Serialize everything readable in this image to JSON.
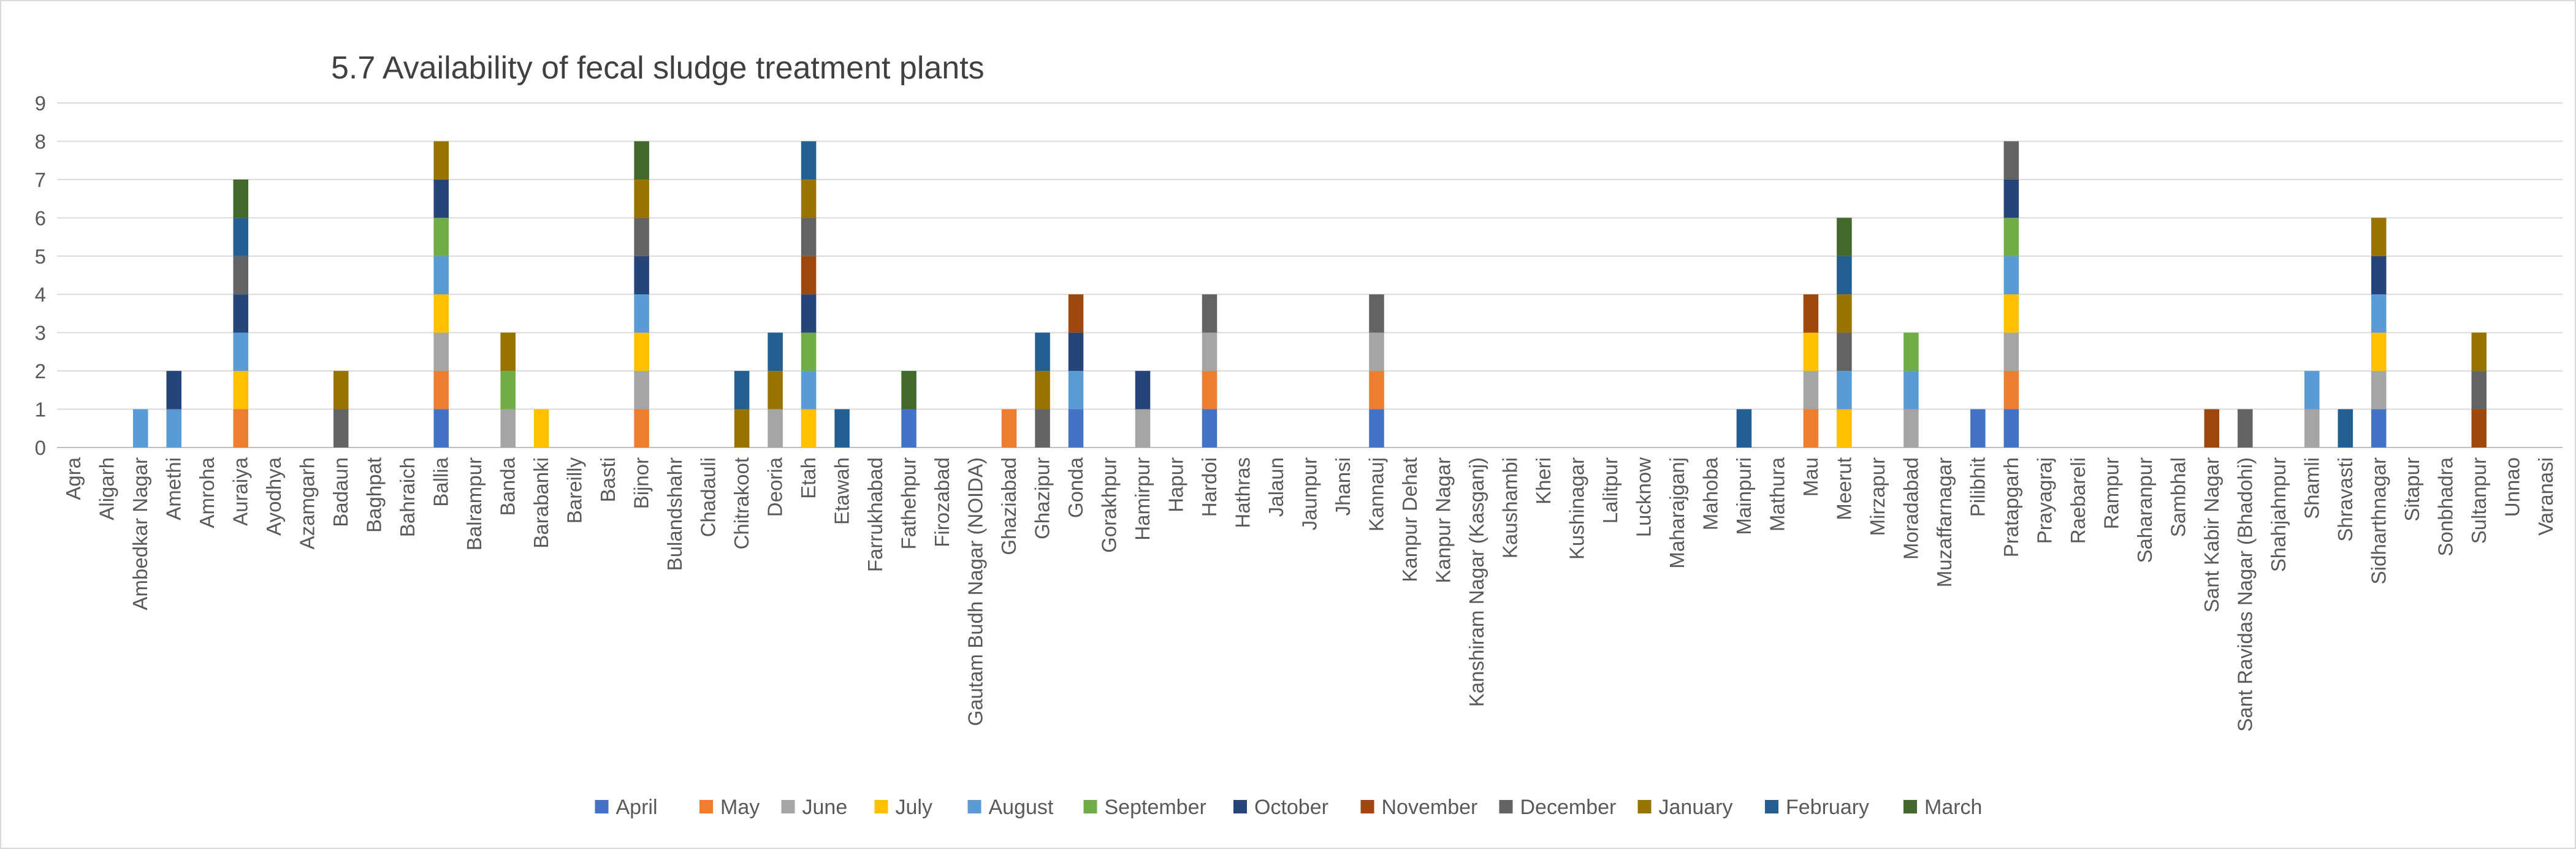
{
  "chart_data": {
    "type": "bar",
    "stacked": true,
    "title": "5.7 Availability of fecal sludge treatment plants",
    "xlabel": "",
    "ylabel": "",
    "ylim": [
      0,
      9
    ],
    "yticks": [
      "0",
      "1",
      "2",
      "3",
      "4",
      "5",
      "6",
      "7",
      "8",
      "9"
    ],
    "grid": true,
    "legend_position": "bottom",
    "categories": [
      "Agra",
      "Aligarh",
      "Ambedkar Nagar",
      "Amethi",
      "Amroha",
      "Auraiya",
      "Ayodhya",
      "Azamgarh",
      "Badaun",
      "Baghpat",
      "Bahraich",
      "Ballia",
      "Balrampur",
      "Banda",
      "Barabanki",
      "Bareilly",
      "Basti",
      "Bijnor",
      "Bulandshahr",
      "Chadauli",
      "Chitrakoot",
      "Deoria",
      "Etah",
      "Etawah",
      "Farrukhabad",
      "Fathehpur",
      "Firozabad",
      "Gautam Budh Nagar (NOIDA)",
      "Ghaziabad",
      "Ghazipur",
      "Gonda",
      "Gorakhpur",
      "Hamirpur",
      "Hapur",
      "Hardoi",
      "Hathras",
      "Jalaun",
      "Jaunpur",
      "Jhansi",
      "Kannauj",
      "Kanpur Dehat",
      "Kanpur Nagar",
      "Kanshiram Nagar (Kasganj)",
      "Kaushambi",
      "Kheri",
      "Kushinagar",
      "Lalitpur",
      "Lucknow",
      "Maharajganj",
      "Mahoba",
      "Mainpuri",
      "Mathura",
      "Mau",
      "Meerut",
      "Mirzapur",
      "Moradabad",
      "Muzaffarnagar",
      "Pilibhit",
      "Pratapgarh",
      "Prayagraj",
      "Raebareli",
      "Rampur",
      "Saharanpur",
      "Sambhal",
      "Sant Kabir Nagar",
      "Sant Ravidas Nagar (Bhadohi)",
      "Shahjahnpur",
      "Shamli",
      "Shravasti",
      "Sidharthnagar",
      "Sitapur",
      "Sonbhadra",
      "Sultanpur",
      "Unnao",
      "Varanasi"
    ],
    "series": [
      {
        "name": "April",
        "color": "#4472C4",
        "values": [
          0,
          0,
          0,
          0,
          0,
          0,
          0,
          0,
          0,
          0,
          0,
          1,
          0,
          0,
          0,
          0,
          0,
          0,
          0,
          0,
          0,
          0,
          0,
          0,
          0,
          1,
          0,
          0,
          0,
          0,
          1,
          0,
          0,
          0,
          1,
          0,
          0,
          0,
          0,
          1,
          0,
          0,
          0,
          0,
          0,
          0,
          0,
          0,
          0,
          0,
          0,
          0,
          0,
          0,
          0,
          0,
          0,
          1,
          1,
          0,
          0,
          0,
          0,
          0,
          0,
          0,
          0,
          0,
          0,
          1,
          0,
          0,
          0,
          0,
          0
        ]
      },
      {
        "name": "May",
        "color": "#ED7D31",
        "values": [
          0,
          0,
          0,
          0,
          0,
          1,
          0,
          0,
          0,
          0,
          0,
          1,
          0,
          0,
          0,
          0,
          0,
          1,
          0,
          0,
          0,
          0,
          0,
          0,
          0,
          0,
          0,
          0,
          1,
          0,
          0,
          0,
          0,
          0,
          1,
          0,
          0,
          0,
          0,
          1,
          0,
          0,
          0,
          0,
          0,
          0,
          0,
          0,
          0,
          0,
          0,
          0,
          1,
          0,
          0,
          0,
          0,
          0,
          1,
          0,
          0,
          0,
          0,
          0,
          0,
          0,
          0,
          0,
          0,
          0,
          0,
          0,
          0,
          0,
          0
        ]
      },
      {
        "name": "June",
        "color": "#A5A5A5",
        "values": [
          0,
          0,
          0,
          0,
          0,
          0,
          0,
          0,
          0,
          0,
          0,
          1,
          0,
          1,
          0,
          0,
          0,
          1,
          0,
          0,
          0,
          1,
          0,
          0,
          0,
          0,
          0,
          0,
          0,
          0,
          0,
          0,
          1,
          0,
          1,
          0,
          0,
          0,
          0,
          1,
          0,
          0,
          0,
          0,
          0,
          0,
          0,
          0,
          0,
          0,
          0,
          0,
          1,
          0,
          0,
          1,
          0,
          0,
          1,
          0,
          0,
          0,
          0,
          0,
          0,
          0,
          0,
          1,
          0,
          1,
          0,
          0,
          0,
          0,
          0
        ]
      },
      {
        "name": "July",
        "color": "#FFC000",
        "values": [
          0,
          0,
          0,
          0,
          0,
          1,
          0,
          0,
          0,
          0,
          0,
          1,
          0,
          0,
          1,
          0,
          0,
          1,
          0,
          0,
          0,
          0,
          1,
          0,
          0,
          0,
          0,
          0,
          0,
          0,
          0,
          0,
          0,
          0,
          0,
          0,
          0,
          0,
          0,
          0,
          0,
          0,
          0,
          0,
          0,
          0,
          0,
          0,
          0,
          0,
          0,
          0,
          1,
          1,
          0,
          0,
          0,
          0,
          1,
          0,
          0,
          0,
          0,
          0,
          0,
          0,
          0,
          0,
          0,
          1,
          0,
          0,
          0,
          0,
          0
        ]
      },
      {
        "name": "August",
        "color": "#5B9BD5",
        "values": [
          0,
          0,
          1,
          1,
          0,
          1,
          0,
          0,
          0,
          0,
          0,
          1,
          0,
          0,
          0,
          0,
          0,
          1,
          0,
          0,
          0,
          0,
          1,
          0,
          0,
          0,
          0,
          0,
          0,
          0,
          1,
          0,
          0,
          0,
          0,
          0,
          0,
          0,
          0,
          0,
          0,
          0,
          0,
          0,
          0,
          0,
          0,
          0,
          0,
          0,
          0,
          0,
          0,
          1,
          0,
          1,
          0,
          0,
          1,
          0,
          0,
          0,
          0,
          0,
          0,
          0,
          0,
          1,
          0,
          1,
          0,
          0,
          0,
          0,
          0
        ]
      },
      {
        "name": "September",
        "color": "#70AD47",
        "values": [
          0,
          0,
          0,
          0,
          0,
          0,
          0,
          0,
          0,
          0,
          0,
          1,
          0,
          1,
          0,
          0,
          0,
          0,
          0,
          0,
          0,
          0,
          1,
          0,
          0,
          0,
          0,
          0,
          0,
          0,
          0,
          0,
          0,
          0,
          0,
          0,
          0,
          0,
          0,
          0,
          0,
          0,
          0,
          0,
          0,
          0,
          0,
          0,
          0,
          0,
          0,
          0,
          0,
          0,
          0,
          1,
          0,
          0,
          1,
          0,
          0,
          0,
          0,
          0,
          0,
          0,
          0,
          0,
          0,
          0,
          0,
          0,
          0,
          0,
          0
        ]
      },
      {
        "name": "October",
        "color": "#264478",
        "values": [
          0,
          0,
          0,
          1,
          0,
          1,
          0,
          0,
          0,
          0,
          0,
          1,
          0,
          0,
          0,
          0,
          0,
          1,
          0,
          0,
          0,
          0,
          1,
          0,
          0,
          0,
          0,
          0,
          0,
          0,
          1,
          0,
          1,
          0,
          0,
          0,
          0,
          0,
          0,
          0,
          0,
          0,
          0,
          0,
          0,
          0,
          0,
          0,
          0,
          0,
          0,
          0,
          0,
          0,
          0,
          0,
          0,
          0,
          1,
          0,
          0,
          0,
          0,
          0,
          0,
          0,
          0,
          0,
          0,
          1,
          0,
          0,
          0,
          0,
          0
        ]
      },
      {
        "name": "November",
        "color": "#9E480E",
        "values": [
          0,
          0,
          0,
          0,
          0,
          0,
          0,
          0,
          0,
          0,
          0,
          0,
          0,
          0,
          0,
          0,
          0,
          0,
          0,
          0,
          0,
          0,
          1,
          0,
          0,
          0,
          0,
          0,
          0,
          0,
          1,
          0,
          0,
          0,
          0,
          0,
          0,
          0,
          0,
          0,
          0,
          0,
          0,
          0,
          0,
          0,
          0,
          0,
          0,
          0,
          0,
          0,
          1,
          0,
          0,
          0,
          0,
          0,
          0,
          0,
          0,
          0,
          0,
          0,
          1,
          0,
          0,
          0,
          0,
          0,
          0,
          0,
          1,
          0,
          0
        ]
      },
      {
        "name": "December",
        "color": "#636363",
        "values": [
          0,
          0,
          0,
          0,
          0,
          1,
          0,
          0,
          1,
          0,
          0,
          0,
          0,
          0,
          0,
          0,
          0,
          1,
          0,
          0,
          0,
          0,
          1,
          0,
          0,
          0,
          0,
          0,
          0,
          1,
          0,
          0,
          0,
          0,
          1,
          0,
          0,
          0,
          0,
          1,
          0,
          0,
          0,
          0,
          0,
          0,
          0,
          0,
          0,
          0,
          0,
          0,
          0,
          1,
          0,
          0,
          0,
          0,
          1,
          0,
          0,
          0,
          0,
          0,
          0,
          1,
          0,
          0,
          0,
          0,
          0,
          0,
          1,
          0,
          0
        ]
      },
      {
        "name": "January",
        "color": "#997300",
        "values": [
          0,
          0,
          0,
          0,
          0,
          0,
          0,
          0,
          1,
          0,
          0,
          1,
          0,
          1,
          0,
          0,
          0,
          1,
          0,
          0,
          1,
          1,
          1,
          0,
          0,
          0,
          0,
          0,
          0,
          1,
          0,
          0,
          0,
          0,
          0,
          0,
          0,
          0,
          0,
          0,
          0,
          0,
          0,
          0,
          0,
          0,
          0,
          0,
          0,
          0,
          0,
          0,
          0,
          1,
          0,
          0,
          0,
          0,
          0,
          0,
          0,
          0,
          0,
          0,
          0,
          0,
          0,
          0,
          0,
          1,
          0,
          0,
          1,
          0,
          0
        ]
      },
      {
        "name": "February",
        "color": "#255E91",
        "values": [
          0,
          0,
          0,
          0,
          0,
          1,
          0,
          0,
          0,
          0,
          0,
          0,
          0,
          0,
          0,
          0,
          0,
          0,
          0,
          0,
          1,
          1,
          1,
          1,
          0,
          0,
          0,
          0,
          0,
          1,
          0,
          0,
          0,
          0,
          0,
          0,
          0,
          0,
          0,
          0,
          0,
          0,
          0,
          0,
          0,
          0,
          0,
          0,
          0,
          0,
          1,
          0,
          0,
          1,
          0,
          0,
          0,
          0,
          0,
          0,
          0,
          0,
          0,
          0,
          0,
          0,
          0,
          0,
          1,
          0,
          0,
          0,
          0,
          0,
          0
        ]
      },
      {
        "name": "March",
        "color": "#43682B",
        "values": [
          0,
          0,
          0,
          0,
          0,
          1,
          0,
          0,
          0,
          0,
          0,
          0,
          0,
          0,
          0,
          0,
          0,
          1,
          0,
          0,
          0,
          0,
          0,
          0,
          0,
          1,
          0,
          0,
          0,
          0,
          0,
          0,
          0,
          0,
          0,
          0,
          0,
          0,
          0,
          0,
          0,
          0,
          0,
          0,
          0,
          0,
          0,
          0,
          0,
          0,
          0,
          0,
          0,
          1,
          0,
          0,
          0,
          0,
          0,
          0,
          0,
          0,
          0,
          0,
          0,
          0,
          0,
          0,
          0,
          0,
          0,
          0,
          0,
          0,
          0
        ]
      }
    ]
  }
}
